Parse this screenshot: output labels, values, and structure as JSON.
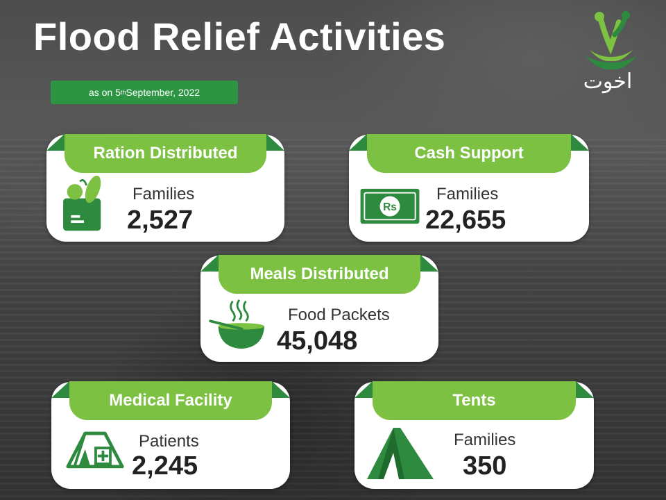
{
  "header": {
    "title": "Flood Relief Activities",
    "date_prefix": "as on 5",
    "date_sup": "th",
    "date_suffix": " September, 2022"
  },
  "logo": {
    "text": "اخوت"
  },
  "colors": {
    "primary_green": "#7cc142",
    "dark_green": "#2d8a3e",
    "badge_green": "#2d9443"
  },
  "cards": [
    {
      "title": "Ration Distributed",
      "unit": "Families",
      "value": "2,527",
      "icon": "grocery-bag-icon"
    },
    {
      "title": "Cash Support",
      "unit": "Families",
      "value": "22,655",
      "icon": "rupee-banknote-icon"
    },
    {
      "title": "Meals Distributed",
      "unit": "Food Packets",
      "value": "45,048",
      "icon": "food-bowl-icon"
    },
    {
      "title": "Medical Facility",
      "unit": "Patients",
      "value": "2,245",
      "icon": "medical-tent-icon"
    },
    {
      "title": "Tents",
      "unit": "Families",
      "value": "350",
      "icon": "tent-icon"
    }
  ]
}
